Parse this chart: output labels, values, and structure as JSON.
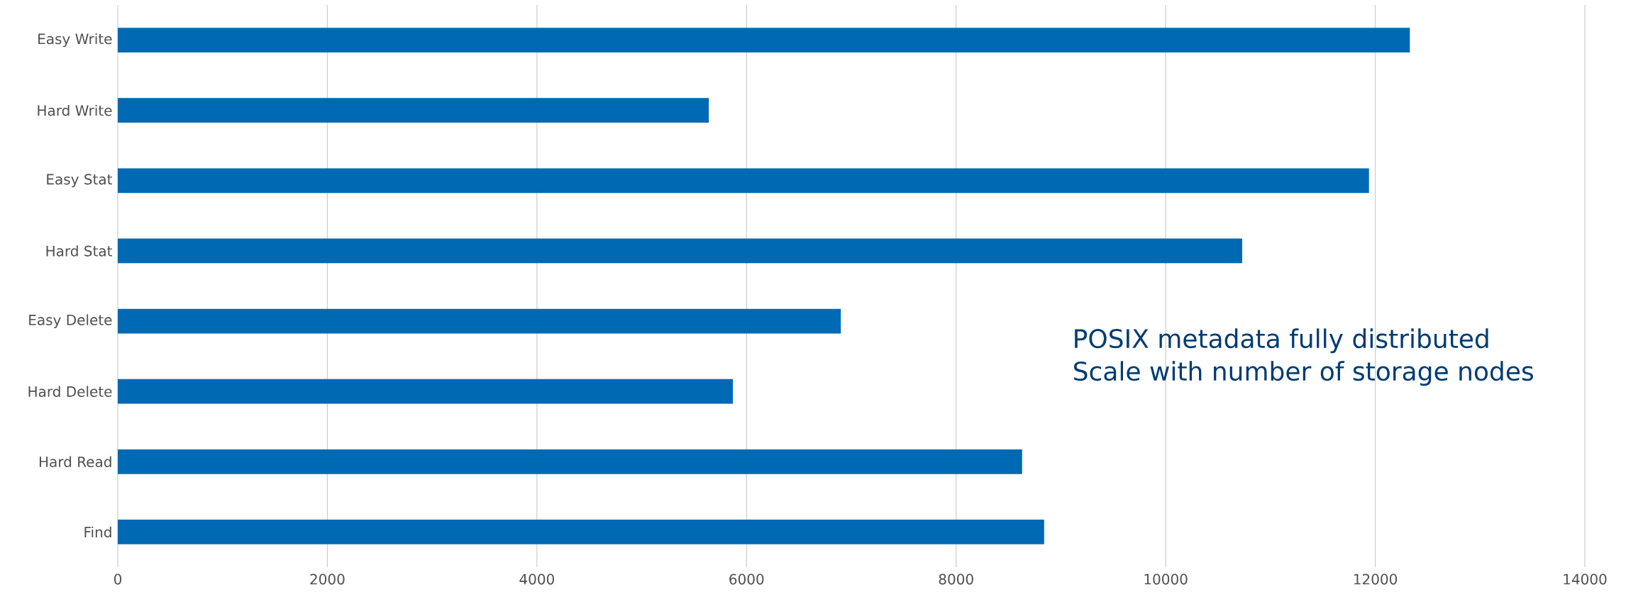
{
  "chart_data": {
    "type": "bar",
    "orientation": "horizontal",
    "categories": [
      "Easy Write",
      "Hard Write",
      "Easy Stat",
      "Hard Stat",
      "Easy Delete",
      "Hard Delete",
      "Hard Read",
      "Find"
    ],
    "values": [
      12330,
      5640,
      11940,
      10730,
      6900,
      5870,
      8630,
      8840
    ],
    "color": "#0069b4",
    "xlim": [
      0,
      14000
    ],
    "xticks": [
      0,
      2000,
      4000,
      6000,
      8000,
      10000,
      12000,
      14000
    ],
    "grid": "x",
    "annotations": [
      "POSIX metadata fully distributed",
      "Scale with number of storage nodes"
    ]
  }
}
